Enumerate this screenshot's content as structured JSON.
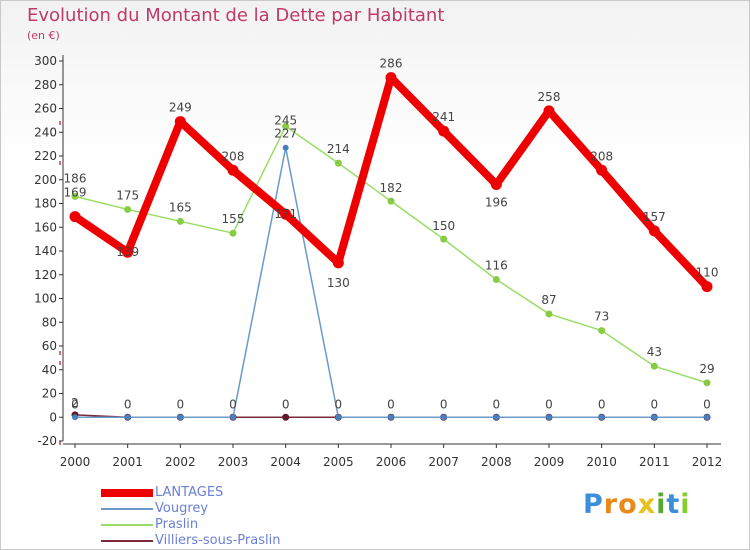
{
  "chart_data": {
    "type": "line",
    "title": "Evolution du Montant de la Dette par Habitant",
    "subtitle": "(en €)",
    "categories": [
      "2000",
      "2001",
      "2002",
      "2003",
      "2004",
      "2005",
      "2006",
      "2007",
      "2008",
      "2009",
      "2010",
      "2011",
      "2012"
    ],
    "ylim": [
      -20,
      300
    ],
    "yticks": [
      -20,
      0,
      20,
      40,
      60,
      80,
      100,
      120,
      140,
      160,
      180,
      200,
      220,
      240,
      260,
      280,
      300
    ],
    "grid": false,
    "series": [
      {
        "name": "Villiers-sous-Praslin",
        "color": "#7a2a3a",
        "values": [
          2,
          0,
          0,
          0,
          0,
          0,
          0,
          0,
          0,
          0,
          0,
          0,
          0
        ]
      },
      {
        "name": "Vougrey",
        "color": "#6a9ac9",
        "values": [
          0,
          0,
          0,
          0,
          227,
          0,
          0,
          0,
          0,
          0,
          0,
          0,
          0
        ]
      },
      {
        "name": "Praslin",
        "color": "#99dd66",
        "values": [
          186,
          175,
          165,
          155,
          245,
          214,
          182,
          150,
          116,
          87,
          73,
          43,
          29
        ]
      },
      {
        "name": "LANTAGES",
        "color": "#ee0000",
        "values": [
          169,
          139,
          249,
          208,
          171,
          130,
          286,
          241,
          196,
          258,
          208,
          157,
          110
        ]
      }
    ],
    "data_labels": [
      {
        "x": "2000",
        "series": "LANTAGES",
        "text": "169"
      },
      {
        "x": "2001",
        "series": "LANTAGES",
        "text": "139"
      },
      {
        "x": "2002",
        "series": "LANTAGES",
        "text": "249"
      },
      {
        "x": "2003",
        "series": "LANTAGES",
        "text": "208"
      },
      {
        "x": "2004",
        "series": "LANTAGES",
        "text": "171"
      },
      {
        "x": "2005",
        "series": "LANTAGES",
        "text": "130"
      },
      {
        "x": "2006",
        "series": "LANTAGES",
        "text": "286"
      },
      {
        "x": "2007",
        "series": "LANTAGES",
        "text": "241"
      },
      {
        "x": "2008",
        "series": "LANTAGES",
        "text": "196"
      },
      {
        "x": "2009",
        "series": "LANTAGES",
        "text": "258"
      },
      {
        "x": "2010",
        "series": "LANTAGES",
        "text": "208"
      },
      {
        "x": "2011",
        "series": "LANTAGES",
        "text": "157"
      },
      {
        "x": "2012",
        "series": "LANTAGES",
        "text": "110"
      },
      {
        "x": "2000",
        "series": "Praslin",
        "text": "186"
      },
      {
        "x": "2001",
        "series": "Praslin",
        "text": "175"
      },
      {
        "x": "2002",
        "series": "Praslin",
        "text": "165"
      },
      {
        "x": "2003",
        "series": "Praslin",
        "text": "155"
      },
      {
        "x": "2004",
        "series": "Praslin",
        "text": "245"
      },
      {
        "x": "2005",
        "series": "Praslin",
        "text": "214"
      },
      {
        "x": "2006",
        "series": "Praslin",
        "text": "182"
      },
      {
        "x": "2007",
        "series": "Praslin",
        "text": "150"
      },
      {
        "x": "2008",
        "series": "Praslin",
        "text": "116"
      },
      {
        "x": "2009",
        "series": "Praslin",
        "text": "87"
      },
      {
        "x": "2010",
        "series": "Praslin",
        "text": "73"
      },
      {
        "x": "2011",
        "series": "Praslin",
        "text": "43"
      },
      {
        "x": "2012",
        "series": "Praslin",
        "text": "29"
      },
      {
        "x": "2004",
        "series": "Vougrey",
        "text": "227"
      },
      {
        "x": "2000",
        "series": "Villiers-sous-Praslin",
        "text": "2"
      },
      {
        "x": "2000",
        "series": "Vougrey",
        "text": "0"
      },
      {
        "x": "2001",
        "series": "Vougrey",
        "text": "0"
      },
      {
        "x": "2002",
        "series": "Vougrey",
        "text": "0"
      },
      {
        "x": "2003",
        "series": "Vougrey",
        "text": "0"
      },
      {
        "x": "2004",
        "series": "Villiers-sous-Praslin",
        "text": "0"
      },
      {
        "x": "2005",
        "series": "Vougrey",
        "text": "0"
      },
      {
        "x": "2006",
        "series": "Vougrey",
        "text": "0"
      },
      {
        "x": "2007",
        "series": "Vougrey",
        "text": "0"
      },
      {
        "x": "2008",
        "series": "Vougrey",
        "text": "0"
      },
      {
        "x": "2009",
        "series": "Vougrey",
        "text": "0"
      },
      {
        "x": "2010",
        "series": "Vougrey",
        "text": "0"
      },
      {
        "x": "2011",
        "series": "Vougrey",
        "text": "0"
      },
      {
        "x": "2012",
        "series": "Vougrey",
        "text": "0"
      }
    ],
    "legend": [
      "LANTAGES",
      "Vougrey",
      "Praslin",
      "Villiers-sous-Praslin"
    ],
    "legend_position": "bottom-left"
  },
  "logo": {
    "letters": [
      "P",
      "r",
      "o",
      "x",
      "i",
      "t",
      "i"
    ],
    "colors": [
      "#3a8fd8",
      "#e88a1a",
      "#e88a1a",
      "#e8c21a",
      "#55aa33",
      "#3a8fd8",
      "#88cc33"
    ]
  }
}
